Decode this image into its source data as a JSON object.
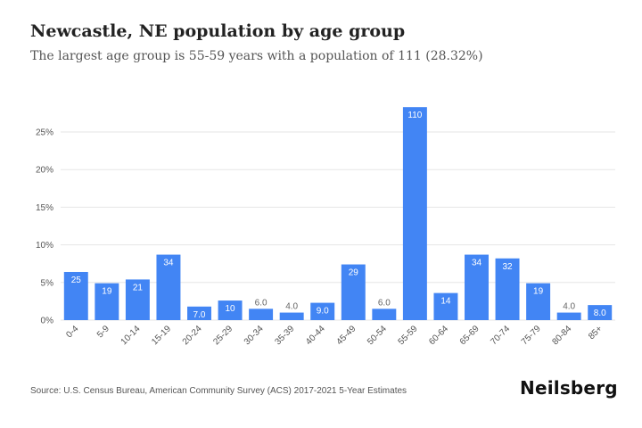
{
  "header": {
    "title": "Newcastle, NE population by age group",
    "subtitle": "The largest age group is 55-59 years with a population of 111 (28.32%)"
  },
  "footer": {
    "source": "Source: U.S. Census Bureau, American Community Survey (ACS) 2017-2021 5-Year Estimates",
    "brand": "Neilsberg"
  },
  "chart_data": {
    "type": "bar",
    "categories": [
      "0-4",
      "5-9",
      "10-14",
      "15-19",
      "20-24",
      "25-29",
      "30-34",
      "35-39",
      "40-44",
      "45-49",
      "50-54",
      "55-59",
      "60-64",
      "65-69",
      "70-74",
      "75-79",
      "80-84",
      "85+"
    ],
    "values": [
      6.4,
      4.9,
      5.4,
      8.7,
      1.8,
      2.6,
      1.5,
      1.0,
      2.3,
      7.4,
      1.5,
      28.3,
      3.6,
      8.7,
      8.2,
      4.9,
      1.0,
      2.0
    ],
    "data_labels": [
      "25",
      "19",
      "21",
      "34",
      "7.0",
      "10",
      "6.0",
      "4.0",
      "9.0",
      "29",
      "6.0",
      "110",
      "14",
      "34",
      "32",
      "19",
      "4.0",
      "8.0"
    ],
    "ylim": [
      0,
      28.32
    ],
    "yticks": [
      0,
      5,
      10,
      15,
      20,
      25
    ],
    "ytick_labels": [
      "0%",
      "5%",
      "10%",
      "15%",
      "20%",
      "25%"
    ],
    "grid": true,
    "bar_color": "#4285f4"
  }
}
